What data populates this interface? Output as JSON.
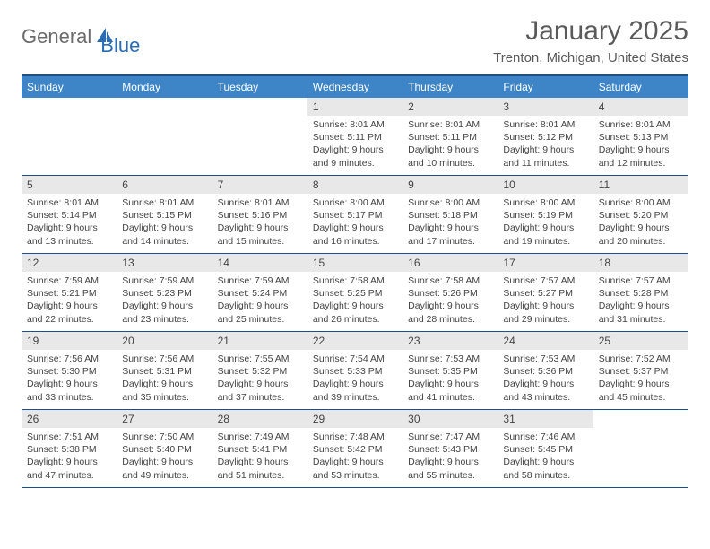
{
  "logo": {
    "part1": "General",
    "part2": "Blue"
  },
  "title": "January 2025",
  "location": "Trenton, Michigan, United States",
  "colors": {
    "header_bg": "#3d85c6",
    "border": "#1b4f8b",
    "daynum_bg": "#e8e8e8"
  },
  "dayNames": [
    "Sunday",
    "Monday",
    "Tuesday",
    "Wednesday",
    "Thursday",
    "Friday",
    "Saturday"
  ],
  "weeks": [
    [
      {
        "n": "",
        "sr": "",
        "ss": "",
        "dl": ""
      },
      {
        "n": "",
        "sr": "",
        "ss": "",
        "dl": ""
      },
      {
        "n": "",
        "sr": "",
        "ss": "",
        "dl": ""
      },
      {
        "n": "1",
        "sr": "Sunrise: 8:01 AM",
        "ss": "Sunset: 5:11 PM",
        "dl": "Daylight: 9 hours and 9 minutes."
      },
      {
        "n": "2",
        "sr": "Sunrise: 8:01 AM",
        "ss": "Sunset: 5:11 PM",
        "dl": "Daylight: 9 hours and 10 minutes."
      },
      {
        "n": "3",
        "sr": "Sunrise: 8:01 AM",
        "ss": "Sunset: 5:12 PM",
        "dl": "Daylight: 9 hours and 11 minutes."
      },
      {
        "n": "4",
        "sr": "Sunrise: 8:01 AM",
        "ss": "Sunset: 5:13 PM",
        "dl": "Daylight: 9 hours and 12 minutes."
      }
    ],
    [
      {
        "n": "5",
        "sr": "Sunrise: 8:01 AM",
        "ss": "Sunset: 5:14 PM",
        "dl": "Daylight: 9 hours and 13 minutes."
      },
      {
        "n": "6",
        "sr": "Sunrise: 8:01 AM",
        "ss": "Sunset: 5:15 PM",
        "dl": "Daylight: 9 hours and 14 minutes."
      },
      {
        "n": "7",
        "sr": "Sunrise: 8:01 AM",
        "ss": "Sunset: 5:16 PM",
        "dl": "Daylight: 9 hours and 15 minutes."
      },
      {
        "n": "8",
        "sr": "Sunrise: 8:00 AM",
        "ss": "Sunset: 5:17 PM",
        "dl": "Daylight: 9 hours and 16 minutes."
      },
      {
        "n": "9",
        "sr": "Sunrise: 8:00 AM",
        "ss": "Sunset: 5:18 PM",
        "dl": "Daylight: 9 hours and 17 minutes."
      },
      {
        "n": "10",
        "sr": "Sunrise: 8:00 AM",
        "ss": "Sunset: 5:19 PM",
        "dl": "Daylight: 9 hours and 19 minutes."
      },
      {
        "n": "11",
        "sr": "Sunrise: 8:00 AM",
        "ss": "Sunset: 5:20 PM",
        "dl": "Daylight: 9 hours and 20 minutes."
      }
    ],
    [
      {
        "n": "12",
        "sr": "Sunrise: 7:59 AM",
        "ss": "Sunset: 5:21 PM",
        "dl": "Daylight: 9 hours and 22 minutes."
      },
      {
        "n": "13",
        "sr": "Sunrise: 7:59 AM",
        "ss": "Sunset: 5:23 PM",
        "dl": "Daylight: 9 hours and 23 minutes."
      },
      {
        "n": "14",
        "sr": "Sunrise: 7:59 AM",
        "ss": "Sunset: 5:24 PM",
        "dl": "Daylight: 9 hours and 25 minutes."
      },
      {
        "n": "15",
        "sr": "Sunrise: 7:58 AM",
        "ss": "Sunset: 5:25 PM",
        "dl": "Daylight: 9 hours and 26 minutes."
      },
      {
        "n": "16",
        "sr": "Sunrise: 7:58 AM",
        "ss": "Sunset: 5:26 PM",
        "dl": "Daylight: 9 hours and 28 minutes."
      },
      {
        "n": "17",
        "sr": "Sunrise: 7:57 AM",
        "ss": "Sunset: 5:27 PM",
        "dl": "Daylight: 9 hours and 29 minutes."
      },
      {
        "n": "18",
        "sr": "Sunrise: 7:57 AM",
        "ss": "Sunset: 5:28 PM",
        "dl": "Daylight: 9 hours and 31 minutes."
      }
    ],
    [
      {
        "n": "19",
        "sr": "Sunrise: 7:56 AM",
        "ss": "Sunset: 5:30 PM",
        "dl": "Daylight: 9 hours and 33 minutes."
      },
      {
        "n": "20",
        "sr": "Sunrise: 7:56 AM",
        "ss": "Sunset: 5:31 PM",
        "dl": "Daylight: 9 hours and 35 minutes."
      },
      {
        "n": "21",
        "sr": "Sunrise: 7:55 AM",
        "ss": "Sunset: 5:32 PM",
        "dl": "Daylight: 9 hours and 37 minutes."
      },
      {
        "n": "22",
        "sr": "Sunrise: 7:54 AM",
        "ss": "Sunset: 5:33 PM",
        "dl": "Daylight: 9 hours and 39 minutes."
      },
      {
        "n": "23",
        "sr": "Sunrise: 7:53 AM",
        "ss": "Sunset: 5:35 PM",
        "dl": "Daylight: 9 hours and 41 minutes."
      },
      {
        "n": "24",
        "sr": "Sunrise: 7:53 AM",
        "ss": "Sunset: 5:36 PM",
        "dl": "Daylight: 9 hours and 43 minutes."
      },
      {
        "n": "25",
        "sr": "Sunrise: 7:52 AM",
        "ss": "Sunset: 5:37 PM",
        "dl": "Daylight: 9 hours and 45 minutes."
      }
    ],
    [
      {
        "n": "26",
        "sr": "Sunrise: 7:51 AM",
        "ss": "Sunset: 5:38 PM",
        "dl": "Daylight: 9 hours and 47 minutes."
      },
      {
        "n": "27",
        "sr": "Sunrise: 7:50 AM",
        "ss": "Sunset: 5:40 PM",
        "dl": "Daylight: 9 hours and 49 minutes."
      },
      {
        "n": "28",
        "sr": "Sunrise: 7:49 AM",
        "ss": "Sunset: 5:41 PM",
        "dl": "Daylight: 9 hours and 51 minutes."
      },
      {
        "n": "29",
        "sr": "Sunrise: 7:48 AM",
        "ss": "Sunset: 5:42 PM",
        "dl": "Daylight: 9 hours and 53 minutes."
      },
      {
        "n": "30",
        "sr": "Sunrise: 7:47 AM",
        "ss": "Sunset: 5:43 PM",
        "dl": "Daylight: 9 hours and 55 minutes."
      },
      {
        "n": "31",
        "sr": "Sunrise: 7:46 AM",
        "ss": "Sunset: 5:45 PM",
        "dl": "Daylight: 9 hours and 58 minutes."
      },
      {
        "n": "",
        "sr": "",
        "ss": "",
        "dl": ""
      }
    ]
  ]
}
